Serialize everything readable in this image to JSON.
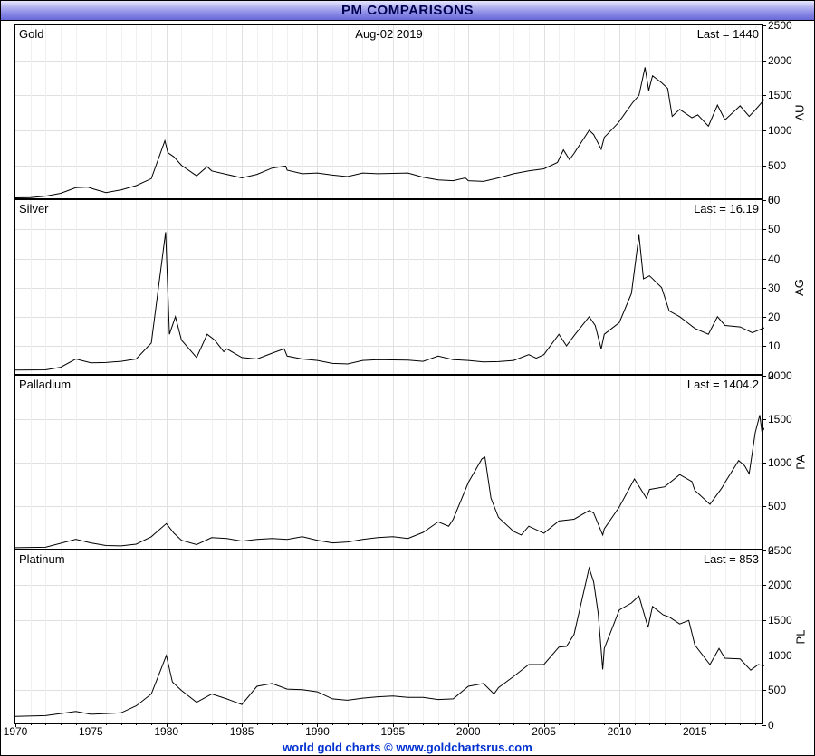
{
  "title": "PM COMPARISONS",
  "title_color": "#000050",
  "titlebar_gradient": [
    "#e8e8ff",
    "#b8b8f0",
    "#9090e8",
    "#6868d8"
  ],
  "footer": "world gold charts © www.goldchartsrus.com",
  "footer_color": "#0030d0",
  "date_label": "Aug-02 2019",
  "background_color": "#ffffff",
  "grid_color": "#e0e0e0",
  "line_color": "#000000",
  "line_width": 1,
  "font_family": "Arial",
  "label_fontsize": 13,
  "tick_fontsize": 12,
  "x_axis": {
    "min": 1970,
    "max": 2019.6,
    "ticks": [
      1970,
      1975,
      1980,
      1985,
      1990,
      1995,
      2000,
      2005,
      2010,
      2015
    ],
    "minor_step": 1
  },
  "panels": [
    {
      "name": "Gold",
      "symbol": "AU",
      "last_value": "1440",
      "ymin": 0,
      "ymax": 2500,
      "ytick_step": 500,
      "type": "line",
      "data": [
        [
          1970,
          35
        ],
        [
          1971,
          40
        ],
        [
          1972,
          60
        ],
        [
          1973,
          100
        ],
        [
          1974,
          180
        ],
        [
          1974.8,
          190
        ],
        [
          1975.2,
          160
        ],
        [
          1976,
          110
        ],
        [
          1977,
          150
        ],
        [
          1978,
          210
        ],
        [
          1979,
          310
        ],
        [
          1979.9,
          850
        ],
        [
          1980.1,
          680
        ],
        [
          1980.5,
          620
        ],
        [
          1981,
          500
        ],
        [
          1982,
          350
        ],
        [
          1982.7,
          480
        ],
        [
          1983,
          420
        ],
        [
          1984,
          370
        ],
        [
          1985,
          320
        ],
        [
          1986,
          370
        ],
        [
          1987,
          460
        ],
        [
          1987.9,
          490
        ],
        [
          1988,
          430
        ],
        [
          1989,
          380
        ],
        [
          1990,
          390
        ],
        [
          1991,
          360
        ],
        [
          1992,
          340
        ],
        [
          1993,
          390
        ],
        [
          1994,
          380
        ],
        [
          1995,
          385
        ],
        [
          1996,
          390
        ],
        [
          1997,
          330
        ],
        [
          1998,
          290
        ],
        [
          1999,
          280
        ],
        [
          1999.8,
          320
        ],
        [
          2000,
          280
        ],
        [
          2001,
          270
        ],
        [
          2002,
          320
        ],
        [
          2003,
          380
        ],
        [
          2004,
          420
        ],
        [
          2005,
          450
        ],
        [
          2005.9,
          540
        ],
        [
          2006.3,
          720
        ],
        [
          2006.7,
          580
        ],
        [
          2007,
          670
        ],
        [
          2008,
          1000
        ],
        [
          2008.3,
          940
        ],
        [
          2008.8,
          730
        ],
        [
          2009,
          900
        ],
        [
          2009.9,
          1100
        ],
        [
          2010.4,
          1250
        ],
        [
          2010.9,
          1400
        ],
        [
          2011.3,
          1500
        ],
        [
          2011.7,
          1900
        ],
        [
          2011.95,
          1570
        ],
        [
          2012.2,
          1780
        ],
        [
          2012.8,
          1680
        ],
        [
          2013.2,
          1600
        ],
        [
          2013.5,
          1200
        ],
        [
          2014,
          1300
        ],
        [
          2014.8,
          1180
        ],
        [
          2015.2,
          1220
        ],
        [
          2015.9,
          1060
        ],
        [
          2016.5,
          1360
        ],
        [
          2017,
          1150
        ],
        [
          2017.7,
          1290
        ],
        [
          2018,
          1350
        ],
        [
          2018.6,
          1200
        ],
        [
          2019,
          1290
        ],
        [
          2019.6,
          1440
        ]
      ]
    },
    {
      "name": "Silver",
      "symbol": "AG",
      "last_value": "16.19",
      "ymin": 0,
      "ymax": 60,
      "ytick_step": 10,
      "type": "line",
      "data": [
        [
          1970,
          1.7
        ],
        [
          1972,
          1.8
        ],
        [
          1973,
          2.7
        ],
        [
          1974,
          5.5
        ],
        [
          1975,
          4.2
        ],
        [
          1976,
          4.3
        ],
        [
          1977,
          4.7
        ],
        [
          1978,
          5.5
        ],
        [
          1979,
          11
        ],
        [
          1979.95,
          49
        ],
        [
          1980.05,
          35
        ],
        [
          1980.2,
          14
        ],
        [
          1980.6,
          20
        ],
        [
          1981,
          12
        ],
        [
          1982,
          6
        ],
        [
          1982.7,
          14
        ],
        [
          1983.2,
          12
        ],
        [
          1983.8,
          8
        ],
        [
          1984,
          9
        ],
        [
          1985,
          6
        ],
        [
          1986,
          5.5
        ],
        [
          1987,
          7.5
        ],
        [
          1987.8,
          9
        ],
        [
          1988,
          6.5
        ],
        [
          1989,
          5.5
        ],
        [
          1990,
          5
        ],
        [
          1991,
          4
        ],
        [
          1992,
          3.8
        ],
        [
          1993,
          5
        ],
        [
          1994,
          5.3
        ],
        [
          1995,
          5.2
        ],
        [
          1996,
          5.1
        ],
        [
          1997,
          4.7
        ],
        [
          1998,
          6.5
        ],
        [
          1999,
          5.3
        ],
        [
          2000,
          5
        ],
        [
          2001,
          4.5
        ],
        [
          2002,
          4.6
        ],
        [
          2003,
          5
        ],
        [
          2004,
          7
        ],
        [
          2004.5,
          5.8
        ],
        [
          2005,
          7
        ],
        [
          2006,
          14
        ],
        [
          2006.5,
          10
        ],
        [
          2007,
          13.5
        ],
        [
          2008,
          20
        ],
        [
          2008.4,
          17
        ],
        [
          2008.8,
          9
        ],
        [
          2009,
          14
        ],
        [
          2010,
          18
        ],
        [
          2010.8,
          28
        ],
        [
          2011.3,
          48
        ],
        [
          2011.6,
          33
        ],
        [
          2012,
          34
        ],
        [
          2012.8,
          30
        ],
        [
          2013.3,
          22
        ],
        [
          2014,
          20
        ],
        [
          2015,
          16
        ],
        [
          2015.9,
          14
        ],
        [
          2016.5,
          20
        ],
        [
          2017,
          17
        ],
        [
          2018,
          16.5
        ],
        [
          2018.8,
          14.5
        ],
        [
          2019.6,
          16.19
        ]
      ]
    },
    {
      "name": "Palladium",
      "symbol": "PA",
      "last_value": "1404.2",
      "ymin": 0,
      "ymax": 2000,
      "ytick_step": 500,
      "type": "line",
      "data": [
        [
          1970,
          35
        ],
        [
          1972,
          40
        ],
        [
          1974,
          130
        ],
        [
          1975,
          90
        ],
        [
          1976,
          60
        ],
        [
          1977,
          55
        ],
        [
          1978,
          75
        ],
        [
          1979,
          160
        ],
        [
          1980,
          310
        ],
        [
          1980.5,
          200
        ],
        [
          1981,
          120
        ],
        [
          1982,
          70
        ],
        [
          1983,
          150
        ],
        [
          1984,
          140
        ],
        [
          1985,
          110
        ],
        [
          1986,
          130
        ],
        [
          1987,
          140
        ],
        [
          1988,
          130
        ],
        [
          1989,
          160
        ],
        [
          1990,
          120
        ],
        [
          1991,
          90
        ],
        [
          1992,
          100
        ],
        [
          1993,
          130
        ],
        [
          1994,
          150
        ],
        [
          1995,
          160
        ],
        [
          1996,
          140
        ],
        [
          1997,
          210
        ],
        [
          1998,
          330
        ],
        [
          1998.7,
          280
        ],
        [
          1999,
          360
        ],
        [
          2000,
          780
        ],
        [
          2000.9,
          1050
        ],
        [
          2001.1,
          1070
        ],
        [
          2001.5,
          600
        ],
        [
          2002,
          380
        ],
        [
          2003,
          220
        ],
        [
          2003.5,
          180
        ],
        [
          2004,
          280
        ],
        [
          2005,
          200
        ],
        [
          2006,
          340
        ],
        [
          2007,
          360
        ],
        [
          2008,
          460
        ],
        [
          2008.3,
          430
        ],
        [
          2008.9,
          180
        ],
        [
          2009,
          250
        ],
        [
          2010,
          500
        ],
        [
          2011,
          820
        ],
        [
          2011.8,
          600
        ],
        [
          2012,
          700
        ],
        [
          2013,
          730
        ],
        [
          2014,
          870
        ],
        [
          2014.8,
          790
        ],
        [
          2015,
          690
        ],
        [
          2016,
          530
        ],
        [
          2016.8,
          720
        ],
        [
          2017,
          780
        ],
        [
          2017.9,
          1030
        ],
        [
          2018.3,
          970
        ],
        [
          2018.6,
          880
        ],
        [
          2019,
          1350
        ],
        [
          2019.3,
          1550
        ],
        [
          2019.45,
          1350
        ],
        [
          2019.6,
          1404
        ]
      ]
    },
    {
      "name": "Platinum",
      "symbol": "PL",
      "last_value": "853",
      "ymin": 0,
      "ymax": 2500,
      "ytick_step": 500,
      "type": "line",
      "data": [
        [
          1970,
          130
        ],
        [
          1972,
          140
        ],
        [
          1973,
          170
        ],
        [
          1974,
          200
        ],
        [
          1975,
          160
        ],
        [
          1976,
          170
        ],
        [
          1977,
          180
        ],
        [
          1978,
          280
        ],
        [
          1979,
          450
        ],
        [
          1980,
          1000
        ],
        [
          1980.4,
          620
        ],
        [
          1981,
          500
        ],
        [
          1982,
          330
        ],
        [
          1983,
          450
        ],
        [
          1984,
          380
        ],
        [
          1985,
          300
        ],
        [
          1986,
          560
        ],
        [
          1987,
          600
        ],
        [
          1988,
          520
        ],
        [
          1989,
          510
        ],
        [
          1990,
          480
        ],
        [
          1991,
          380
        ],
        [
          1992,
          360
        ],
        [
          1993,
          390
        ],
        [
          1994,
          410
        ],
        [
          1995,
          420
        ],
        [
          1996,
          400
        ],
        [
          1997,
          400
        ],
        [
          1998,
          370
        ],
        [
          1999,
          380
        ],
        [
          2000,
          560
        ],
        [
          2001,
          600
        ],
        [
          2001.7,
          450
        ],
        [
          2002,
          540
        ],
        [
          2003,
          700
        ],
        [
          2004,
          870
        ],
        [
          2005,
          870
        ],
        [
          2006,
          1120
        ],
        [
          2006.5,
          1130
        ],
        [
          2007,
          1300
        ],
        [
          2008,
          2250
        ],
        [
          2008.3,
          2050
        ],
        [
          2008.6,
          1600
        ],
        [
          2008.9,
          800
        ],
        [
          2009,
          1100
        ],
        [
          2010,
          1650
        ],
        [
          2010.8,
          1750
        ],
        [
          2011.3,
          1850
        ],
        [
          2011.9,
          1400
        ],
        [
          2012.2,
          1700
        ],
        [
          2012.9,
          1580
        ],
        [
          2013.3,
          1550
        ],
        [
          2014,
          1450
        ],
        [
          2014.6,
          1500
        ],
        [
          2015,
          1150
        ],
        [
          2016,
          870
        ],
        [
          2016.6,
          1100
        ],
        [
          2017,
          960
        ],
        [
          2018,
          950
        ],
        [
          2018.7,
          790
        ],
        [
          2019.2,
          870
        ],
        [
          2019.6,
          853
        ]
      ]
    }
  ]
}
